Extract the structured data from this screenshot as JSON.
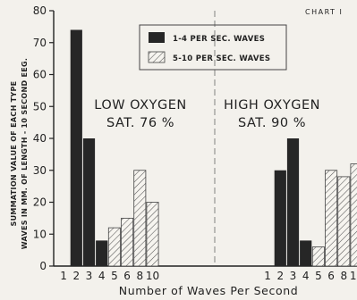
{
  "chart_data": {
    "type": "bar",
    "chart_label": "CHART I",
    "ylabel_line1": "SUMMATION VALUE OF EACH TYPE",
    "ylabel_line2": "WAVES IN MM. OF LENGTH - 10 SECOND EEG.",
    "xlabel": "Number of Waves Per Second",
    "ylim": [
      0,
      80
    ],
    "yticks": [
      0,
      10,
      20,
      30,
      40,
      50,
      60,
      70,
      80
    ],
    "categories": [
      "1",
      "2",
      "3",
      "4",
      "5",
      "6",
      "8",
      "10"
    ],
    "legend": [
      {
        "name": "1-4 PER SEC. WAVES",
        "style": "solid",
        "color": "#262626"
      },
      {
        "name": "5-10 PER SEC. WAVES",
        "style": "hatched",
        "color": "#555555"
      }
    ],
    "legend_placement": "top-center",
    "panels": [
      {
        "label_line1": "LOW OXYGEN",
        "label_line2": "SAT. 76 %",
        "values": [
          0,
          74,
          40,
          8,
          12,
          15,
          30,
          20
        ]
      },
      {
        "label_line1": "HIGH OXYGEN",
        "label_line2": "SAT. 90 %",
        "values": [
          0,
          30,
          40,
          8,
          6,
          30,
          28,
          32
        ]
      }
    ]
  }
}
